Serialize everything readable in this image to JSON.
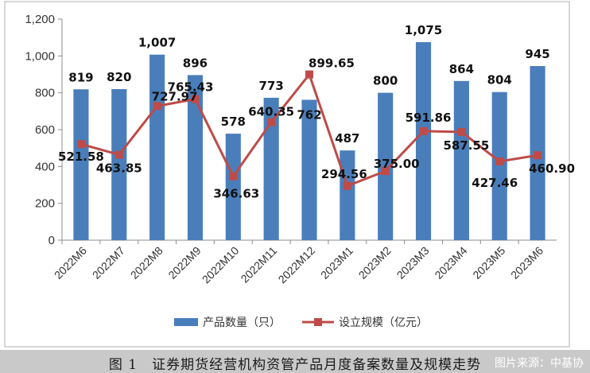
{
  "chart_data": {
    "type": "bar",
    "categories": [
      "2022M6",
      "2022M7",
      "2022M8",
      "2022M9",
      "2022M10",
      "2022M11",
      "2022M12",
      "2023M1",
      "2023M2",
      "2023M3",
      "2023M4",
      "2023M5",
      "2023M6"
    ],
    "series": [
      {
        "name": "产品数量（只）",
        "type": "bar",
        "values": [
          819,
          820,
          1007,
          896,
          578,
          773,
          762,
          487,
          800,
          1075,
          864,
          804,
          945
        ],
        "labels": [
          "819",
          "820",
          "1,007",
          "896",
          "578",
          "773",
          "762",
          "487",
          "800",
          "1,075",
          "864",
          "804",
          "945"
        ],
        "color": "#4a7ebb"
      },
      {
        "name": "设立规模（亿元）",
        "type": "line",
        "values": [
          521.58,
          463.85,
          727.97,
          765.43,
          346.63,
          640.35,
          899.65,
          294.56,
          375.0,
          591.86,
          587.55,
          427.46,
          460.9
        ],
        "labels": [
          "521.58",
          "463.85",
          "727.97",
          "765.43",
          "346.63",
          "640.35",
          "899.65",
          "294.56",
          "375.00",
          "591.86",
          "587.55",
          "427.46",
          "460.90"
        ],
        "color": "#be4b48"
      }
    ],
    "yticks": [
      "0",
      "200",
      "400",
      "600",
      "800",
      "1,000",
      "1,200"
    ],
    "ylim": [
      0,
      1200
    ],
    "grid": false,
    "legend": "bottom"
  },
  "caption": "图 1　证券期货经营机构资管产品月度备案数量及规模走势",
  "watermark": "图片来源：中基协"
}
